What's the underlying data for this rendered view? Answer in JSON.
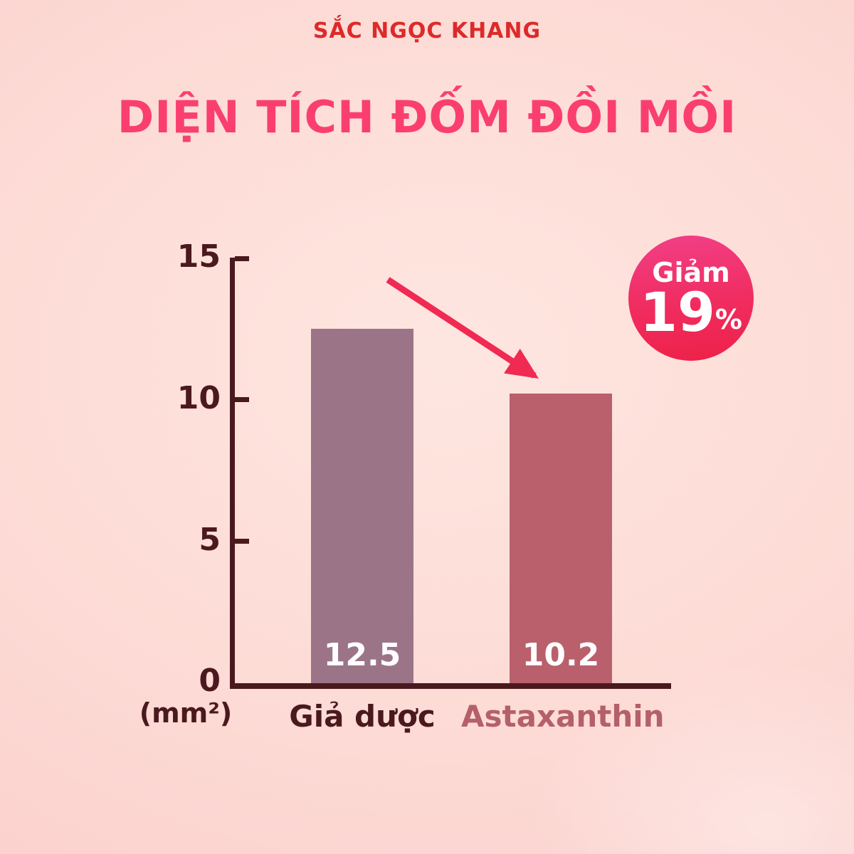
{
  "header": {
    "brand": "SẮC NGỌC KHANG",
    "brand_color": "#dd2a2a"
  },
  "chart_data": {
    "type": "bar",
    "title": "DIỆN TÍCH ĐỐM ĐỒI MỒI",
    "title_color": "#fa3f70",
    "unit_label": "(mm²)",
    "categories": [
      "Giả dược",
      "Astaxanthin"
    ],
    "values": [
      12.5,
      10.2
    ],
    "value_labels": [
      "12.5",
      "10.2"
    ],
    "ylim": [
      0,
      15
    ],
    "yticks": [
      15,
      10,
      5,
      0
    ],
    "bar_colors": [
      "#9c7487",
      "#b9606c"
    ],
    "category_colors": [
      "#4a191e",
      "#b4606a"
    ],
    "axis_color": "#4a191e",
    "grid": false,
    "legend": false,
    "annotation": {
      "label": "Giảm",
      "value": "19",
      "suffix": "%",
      "badge_gradient": [
        "#f23f87",
        "#ee2148"
      ],
      "arrow_color": "#f02a52",
      "arrow_meaning": "decrease from placebo bar to astaxanthin bar"
    }
  }
}
